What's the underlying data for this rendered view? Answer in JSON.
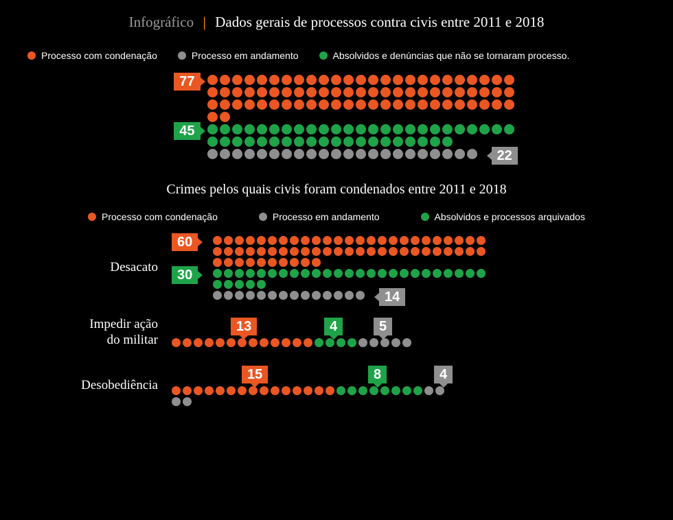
{
  "colors": {
    "orange": "#ea5723",
    "green": "#1fa349",
    "gray": "#8f8f8f",
    "background": "#000000",
    "text_white": "#ffffff",
    "text_gray": "#9a9a9a",
    "divider": "#e87b00"
  },
  "header": {
    "prefix": "Infográfico",
    "title": "Dados gerais de processos contra civis entre 2011 e 2018",
    "fontsize": 21
  },
  "legend1": [
    {
      "color": "#ea5723",
      "label": "Processo com condenação"
    },
    {
      "color": "#8f8f8f",
      "label": "Processo em andamento"
    },
    {
      "color": "#1fa349",
      "label": "Absolvidos e denúncias que não se tornaram processo."
    }
  ],
  "overview": {
    "dot_size": 15,
    "dots_per_row": 25,
    "series": [
      {
        "color": "#ea5723",
        "value": 77,
        "badge_side": "left"
      },
      {
        "color": "#1fa349",
        "value": 45,
        "badge_side": "left"
      },
      {
        "color": "#8f8f8f",
        "value": 22,
        "badge_side": "right"
      }
    ]
  },
  "subheader": "Crimes pelos quais civis foram condenados entre 2011 e 2018",
  "legend2": [
    {
      "color": "#ea5723",
      "label": "Processo com condenação"
    },
    {
      "color": "#8f8f8f",
      "label": "Processo em andamento"
    },
    {
      "color": "#1fa349",
      "label": "Absolvidos e processos arquivados"
    }
  ],
  "crimes": {
    "dot_size": 13,
    "dots_per_row": 25,
    "label_fontsize": 19,
    "items": [
      {
        "label": "Desacato",
        "series": [
          {
            "color": "#ea5723",
            "value": 60,
            "badge_side": "left"
          },
          {
            "color": "#1fa349",
            "value": 30,
            "badge_side": "left"
          },
          {
            "color": "#8f8f8f",
            "value": 14,
            "badge_side": "right"
          }
        ]
      },
      {
        "label": "Impedir ação do militar",
        "series": [
          {
            "color": "#ea5723",
            "value": 13,
            "badge_side": "top"
          },
          {
            "color": "#1fa349",
            "value": 4,
            "badge_side": "top"
          },
          {
            "color": "#8f8f8f",
            "value": 5,
            "badge_side": "top"
          }
        ]
      },
      {
        "label": "Desobediência",
        "series": [
          {
            "color": "#ea5723",
            "value": 15,
            "badge_side": "top"
          },
          {
            "color": "#1fa349",
            "value": 8,
            "badge_side": "top"
          },
          {
            "color": "#8f8f8f",
            "value": 4,
            "badge_side": "top"
          }
        ]
      }
    ]
  }
}
